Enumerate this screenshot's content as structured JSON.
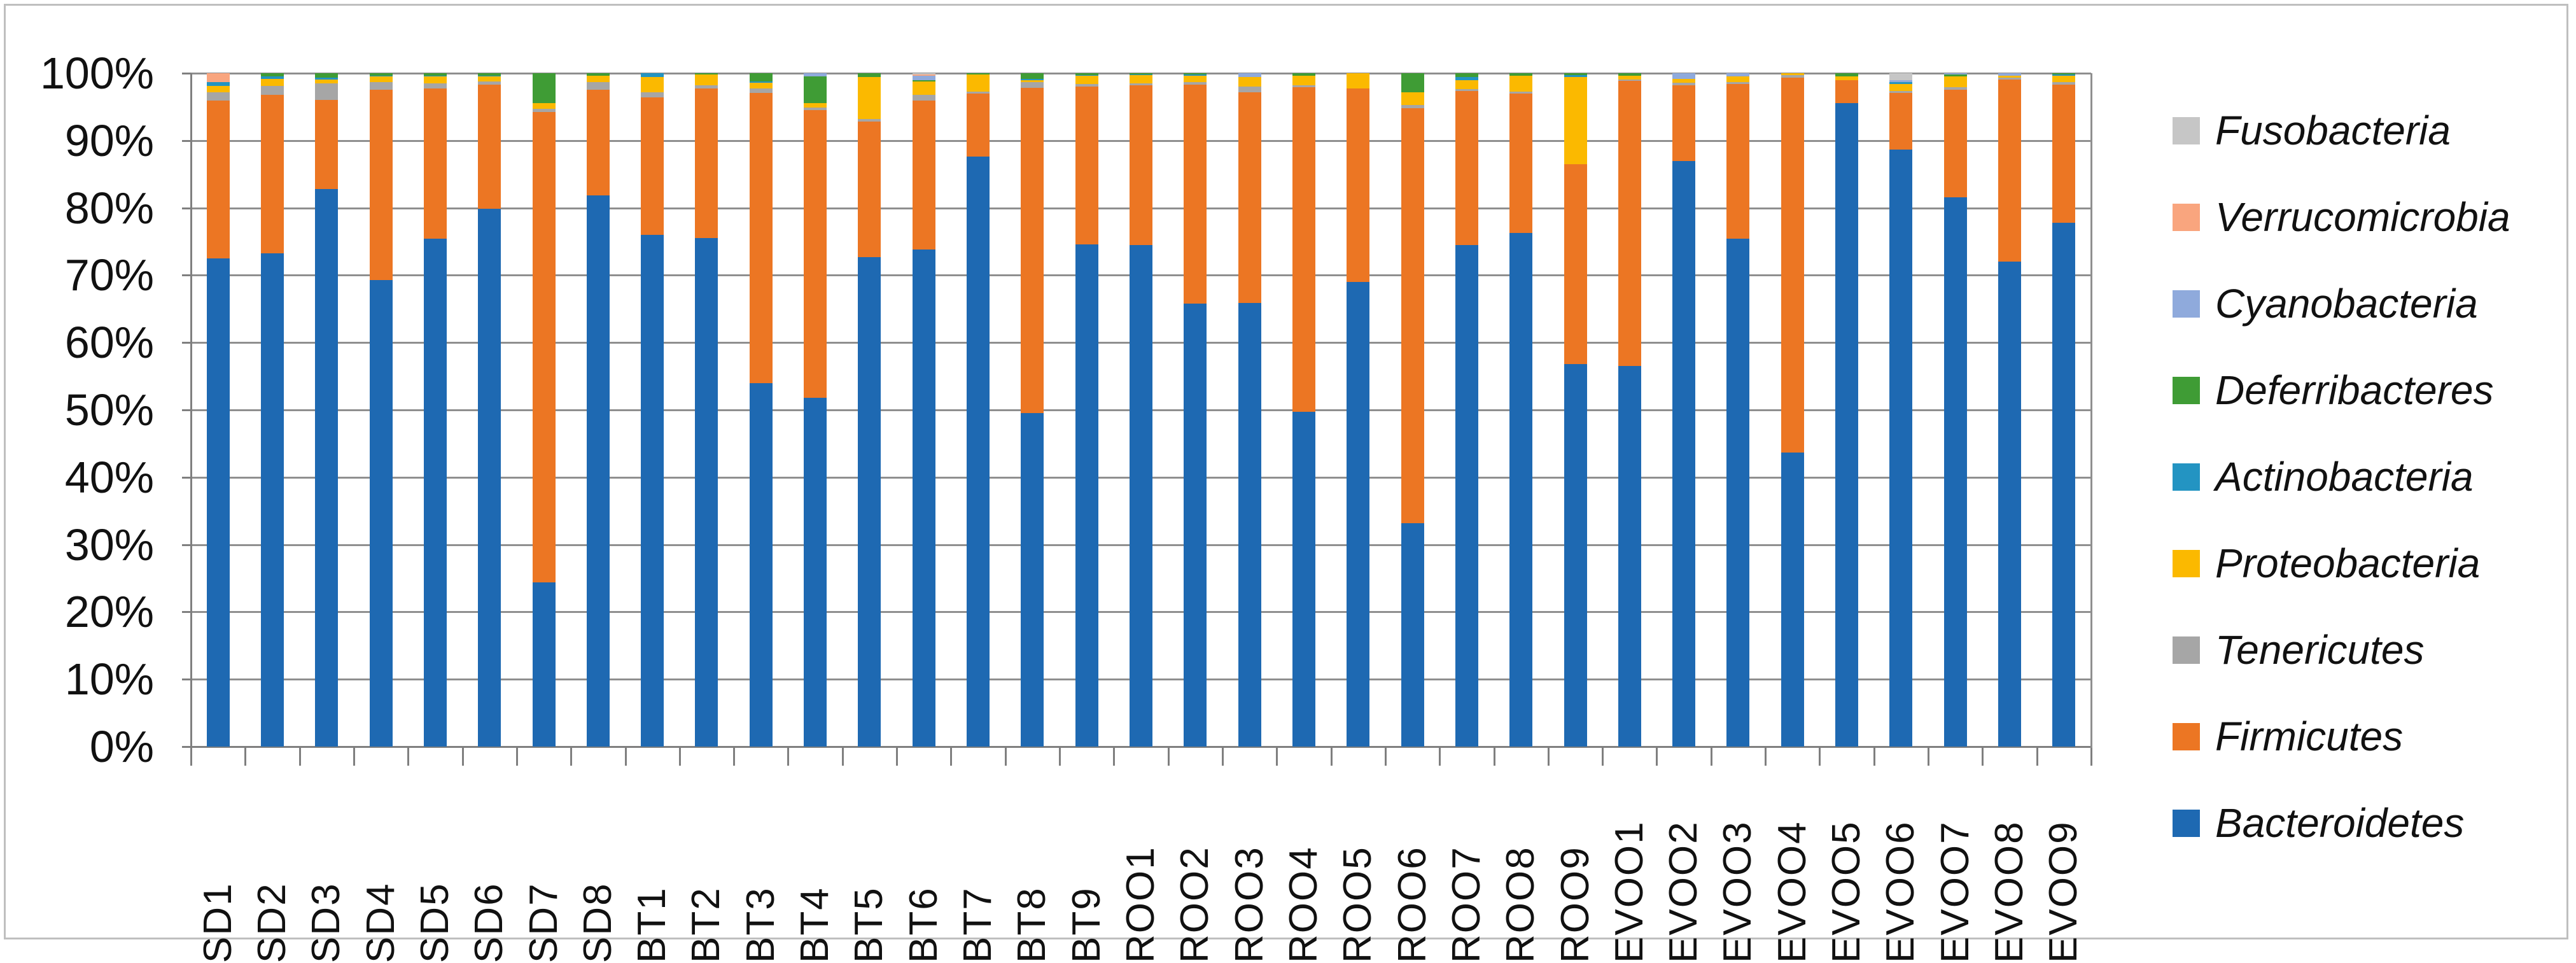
{
  "chart_data": {
    "type": "bar",
    "variant": "100%-stacked-column",
    "title": "",
    "xlabel": "",
    "ylabel": "",
    "ylim": [
      0,
      100
    ],
    "grid": true,
    "legend_position": "right",
    "y_ticks": [
      "100%",
      "90%",
      "80%",
      "70%",
      "60%",
      "50%",
      "40%",
      "30%",
      "20%",
      "10%",
      "0%"
    ],
    "categories": [
      "SD1",
      "SD2",
      "SD3",
      "SD4",
      "SD5",
      "SD6",
      "SD7",
      "SD8",
      "BT1",
      "BT2",
      "BT3",
      "BT4",
      "BT5",
      "BT6",
      "BT7",
      "BT8",
      "BT9",
      "ROO1",
      "ROO2",
      "ROO3",
      "ROO4",
      "ROO5",
      "ROO6",
      "ROO7",
      "ROO8",
      "ROO9",
      "EVOO1",
      "EVOO2",
      "EVOO3",
      "EVOO4",
      "EVOO5",
      "EVOO6",
      "EVOO7",
      "EVOO8",
      "EVOO9"
    ],
    "series": [
      {
        "name": "Bacteroidetes",
        "color": "#1E69B2",
        "values": [
          72.5,
          73.3,
          82.8,
          69.3,
          75.4,
          79.9,
          24.4,
          81.9,
          76.0,
          75.5,
          54.0,
          51.8,
          72.7,
          73.8,
          87.6,
          49.5,
          74.6,
          74.5,
          65.8,
          65.9,
          49.7,
          69.0,
          33.2,
          74.5,
          76.3,
          56.8,
          56.5,
          87.0,
          75.4,
          43.7,
          95.6,
          88.7,
          81.6,
          72.0,
          77.8
        ]
      },
      {
        "name": "Firmicutes",
        "color": "#EC7623",
        "values": [
          23.4,
          23.5,
          13.2,
          28.2,
          22.3,
          18.4,
          69.8,
          15.6,
          20.4,
          22.2,
          43.1,
          42.7,
          20.1,
          22.1,
          9.4,
          48.3,
          23.4,
          23.7,
          32.5,
          31.3,
          48.2,
          28.7,
          61.6,
          22.9,
          20.7,
          29.7,
          42.4,
          11.2,
          23.0,
          55.6,
          3.4,
          8.4,
          15.9,
          27.1,
          20.5
        ]
      },
      {
        "name": "Tenericutes",
        "color": "#A6A6A6",
        "values": [
          1.3,
          1.3,
          2.5,
          1.2,
          0.8,
          0.5,
          0.5,
          1.2,
          0.8,
          0.5,
          0.6,
          0.4,
          0.4,
          0.9,
          0.3,
          0.9,
          0.4,
          0.3,
          0.4,
          0.8,
          0.3,
          0.0,
          0.5,
          0.2,
          0.3,
          0.0,
          0.2,
          0.4,
          0.3,
          0.4,
          0.0,
          0.3,
          0.4,
          0.2,
          0.4
        ]
      },
      {
        "name": "Proteobacteria",
        "color": "#FBB900",
        "values": [
          0.9,
          1.1,
          0.6,
          0.8,
          1.0,
          0.7,
          0.9,
          0.9,
          2.2,
          1.6,
          0.9,
          0.7,
          6.2,
          2.0,
          2.5,
          0.3,
          1.2,
          1.2,
          0.9,
          1.4,
          1.4,
          2.3,
          1.9,
          1.4,
          2.3,
          12.9,
          0.5,
          0.6,
          0.8,
          0.3,
          0.5,
          1.0,
          1.6,
          0.3,
          0.9
        ]
      },
      {
        "name": "Actinobacteria",
        "color": "#2394C2",
        "values": [
          0.6,
          0.3,
          0.2,
          0.1,
          0.1,
          0.1,
          0.0,
          0.0,
          0.6,
          0.0,
          0.2,
          0.0,
          0.0,
          0.0,
          0.0,
          0.2,
          0.1,
          0.1,
          0.2,
          0.0,
          0.0,
          0.0,
          0.0,
          0.4,
          0.0,
          0.3,
          0.0,
          0.0,
          0.0,
          0.0,
          0.0,
          0.3,
          0.0,
          0.0,
          0.2
        ]
      },
      {
        "name": "Deferribacteres",
        "color": "#3F9C35",
        "values": [
          0.0,
          0.5,
          0.7,
          0.4,
          0.4,
          0.4,
          4.4,
          0.4,
          0.0,
          0.2,
          1.2,
          3.9,
          0.6,
          0.2,
          0.2,
          0.8,
          0.3,
          0.2,
          0.2,
          0.0,
          0.4,
          0.0,
          2.8,
          0.6,
          0.4,
          0.3,
          0.4,
          0.0,
          0.0,
          0.0,
          0.5,
          0.0,
          0.3,
          0.0,
          0.2
        ]
      },
      {
        "name": "Cyanobacteria",
        "color": "#8FAADC",
        "values": [
          0.0,
          0.0,
          0.0,
          0.0,
          0.0,
          0.0,
          0.0,
          0.0,
          0.0,
          0.0,
          0.0,
          0.5,
          0.0,
          0.6,
          0.0,
          0.0,
          0.0,
          0.0,
          0.0,
          0.6,
          0.0,
          0.0,
          0.0,
          0.0,
          0.0,
          0.0,
          0.0,
          0.8,
          0.5,
          0.0,
          0.0,
          0.3,
          0.2,
          0.4,
          0.0
        ]
      },
      {
        "name": "Verrucomicrobia",
        "color": "#F9A57E",
        "values": [
          1.3,
          0.0,
          0.0,
          0.0,
          0.0,
          0.0,
          0.0,
          0.0,
          0.0,
          0.0,
          0.0,
          0.0,
          0.0,
          0.2,
          0.0,
          0.0,
          0.0,
          0.0,
          0.0,
          0.0,
          0.0,
          0.0,
          0.0,
          0.0,
          0.0,
          0.0,
          0.0,
          0.0,
          0.0,
          0.0,
          0.0,
          0.0,
          0.0,
          0.0,
          0.0
        ]
      },
      {
        "name": "Fusobacteria",
        "color": "#C6C6C6",
        "values": [
          0.0,
          0.0,
          0.0,
          0.0,
          0.0,
          0.0,
          0.0,
          0.0,
          0.0,
          0.0,
          0.0,
          0.0,
          0.0,
          0.2,
          0.0,
          0.0,
          0.0,
          0.0,
          0.0,
          0.0,
          0.0,
          0.0,
          0.0,
          0.0,
          0.0,
          0.0,
          0.0,
          0.0,
          0.0,
          0.0,
          0.0,
          1.0,
          0.0,
          0.0,
          0.0
        ]
      }
    ],
    "legend_top_to_bottom": [
      "Fusobacteria",
      "Verrucomicrobia",
      "Cyanobacteria",
      "Deferribacteres",
      "Actinobacteria",
      "Proteobacteria",
      "Tenericutes",
      "Firmicutes",
      "Bacteroidetes"
    ]
  }
}
